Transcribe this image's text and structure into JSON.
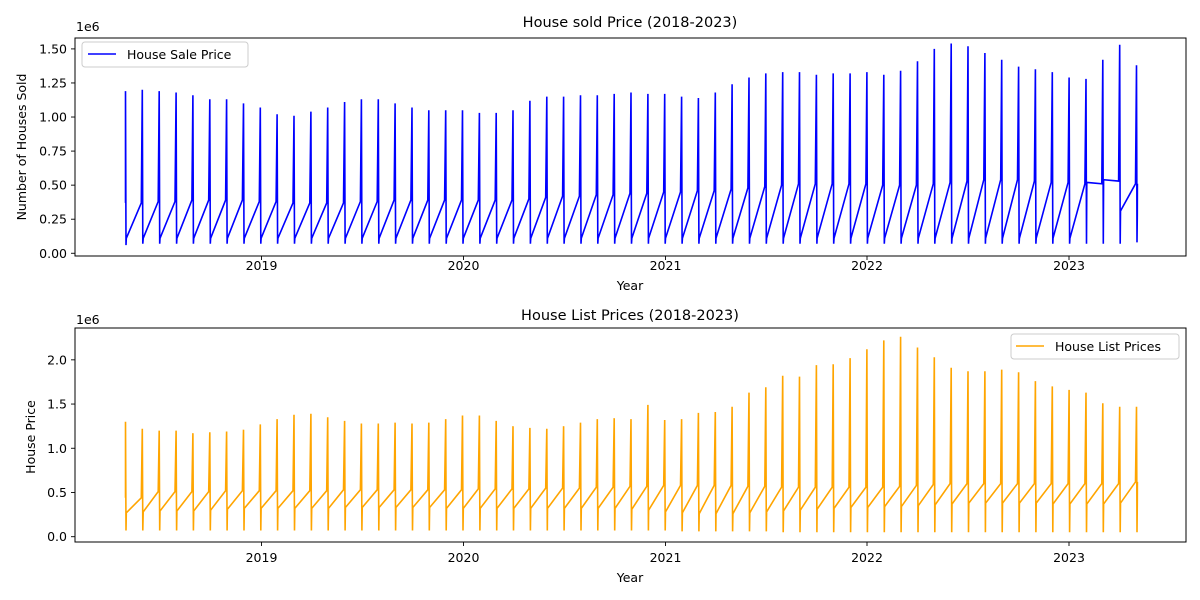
{
  "chart_data": [
    {
      "type": "line",
      "title": "House sold Price (2018-2023)",
      "xlabel": "Year",
      "ylabel": "Number of Houses Sold",
      "offset_label": "1e6",
      "x_ticks": [
        "2019",
        "2020",
        "2021",
        "2022",
        "2023"
      ],
      "y_ticks": [
        "0.00",
        "0.25",
        "0.50",
        "0.75",
        "1.00",
        "1.25",
        "1.50"
      ],
      "ylim": [
        -0.02,
        1.58
      ],
      "grid": false,
      "legend": "upper left",
      "series": [
        {
          "name": "House Sale Price",
          "color": "#0000ff",
          "monthly_peak": [
            1.19,
            1.2,
            1.19,
            1.18,
            1.16,
            1.13,
            1.13,
            1.1,
            1.07,
            1.02,
            1.01,
            1.04,
            1.07,
            1.11,
            1.13,
            1.13,
            1.1,
            1.07,
            1.05,
            1.05,
            1.05,
            1.03,
            1.03,
            1.05,
            1.12,
            1.15,
            1.15,
            1.16,
            1.16,
            1.17,
            1.18,
            1.17,
            1.17,
            1.15,
            1.14,
            1.18,
            1.24,
            1.29,
            1.32,
            1.33,
            1.33,
            1.31,
            1.32,
            1.32,
            1.33,
            1.31,
            1.34,
            1.41,
            1.5,
            1.54,
            1.52,
            1.47,
            1.42,
            1.37,
            1.35,
            1.33,
            1.29,
            1.28,
            1.42,
            1.53,
            1.38
          ],
          "monthly_min": [
            0.06,
            0.07,
            0.07,
            0.07,
            0.07,
            0.07,
            0.07,
            0.07,
            0.07,
            0.07,
            0.07,
            0.07,
            0.07,
            0.07,
            0.07,
            0.07,
            0.07,
            0.07,
            0.07,
            0.07,
            0.07,
            0.07,
            0.07,
            0.07,
            0.07,
            0.07,
            0.07,
            0.07,
            0.07,
            0.07,
            0.07,
            0.07,
            0.07,
            0.07,
            0.07,
            0.07,
            0.07,
            0.07,
            0.07,
            0.07,
            0.07,
            0.07,
            0.07,
            0.07,
            0.07,
            0.07,
            0.07,
            0.07,
            0.07,
            0.07,
            0.07,
            0.07,
            0.07,
            0.07,
            0.07,
            0.07,
            0.07,
            0.07,
            0.07,
            0.07,
            0.08
          ],
          "monthly_low": [
            0.11,
            0.11,
            0.11,
            0.11,
            0.11,
            0.11,
            0.11,
            0.11,
            0.11,
            0.11,
            0.11,
            0.11,
            0.11,
            0.11,
            0.11,
            0.11,
            0.11,
            0.11,
            0.11,
            0.11,
            0.11,
            0.11,
            0.11,
            0.11,
            0.11,
            0.11,
            0.11,
            0.11,
            0.11,
            0.11,
            0.11,
            0.11,
            0.11,
            0.11,
            0.11,
            0.11,
            0.11,
            0.11,
            0.11,
            0.11,
            0.11,
            0.11,
            0.11,
            0.11,
            0.11,
            0.11,
            0.11,
            0.11,
            0.11,
            0.11,
            0.11,
            0.11,
            0.11,
            0.11,
            0.11,
            0.11,
            0.11,
            0.52,
            0.54,
            0.31,
            0.28
          ],
          "monthly_high": [
            0.37,
            0.38,
            0.38,
            0.39,
            0.39,
            0.39,
            0.39,
            0.38,
            0.38,
            0.37,
            0.37,
            0.37,
            0.37,
            0.38,
            0.38,
            0.39,
            0.39,
            0.39,
            0.39,
            0.39,
            0.39,
            0.39,
            0.39,
            0.4,
            0.41,
            0.42,
            0.42,
            0.43,
            0.43,
            0.44,
            0.44,
            0.45,
            0.45,
            0.46,
            0.46,
            0.47,
            0.48,
            0.49,
            0.5,
            0.51,
            0.51,
            0.51,
            0.51,
            0.51,
            0.5,
            0.5,
            0.5,
            0.51,
            0.52,
            0.53,
            0.54,
            0.54,
            0.54,
            0.53,
            0.52,
            0.52,
            0.51,
            0.51,
            0.53,
            0.51,
            0.51
          ]
        }
      ]
    },
    {
      "type": "line",
      "title": "House List Prices (2018-2023)",
      "xlabel": "Year",
      "ylabel": "House Price",
      "offset_label": "1e6",
      "x_ticks": [
        "2019",
        "2020",
        "2021",
        "2022",
        "2023"
      ],
      "y_ticks": [
        "0.0",
        "0.5",
        "1.0",
        "1.5",
        "2.0"
      ],
      "ylim": [
        -0.06,
        2.36
      ],
      "grid": false,
      "legend": "upper right",
      "series": [
        {
          "name": "House List Prices",
          "color": "#ffa500",
          "monthly_peak": [
            1.3,
            1.22,
            1.2,
            1.2,
            1.17,
            1.18,
            1.19,
            1.21,
            1.27,
            1.33,
            1.38,
            1.39,
            1.35,
            1.31,
            1.28,
            1.28,
            1.29,
            1.28,
            1.29,
            1.33,
            1.37,
            1.37,
            1.31,
            1.25,
            1.23,
            1.22,
            1.25,
            1.29,
            1.33,
            1.34,
            1.33,
            1.49,
            1.32,
            1.33,
            1.4,
            1.41,
            1.47,
            1.63,
            1.69,
            1.82,
            1.81,
            1.94,
            1.95,
            2.02,
            2.12,
            2.22,
            2.26,
            2.14,
            2.03,
            1.91,
            1.87,
            1.87,
            1.89,
            1.86,
            1.76,
            1.7,
            1.66,
            1.63,
            1.51,
            1.47,
            1.47
          ],
          "monthly_min": [
            0.07,
            0.07,
            0.07,
            0.07,
            0.07,
            0.07,
            0.07,
            0.07,
            0.07,
            0.07,
            0.07,
            0.07,
            0.07,
            0.07,
            0.07,
            0.07,
            0.07,
            0.07,
            0.07,
            0.07,
            0.07,
            0.07,
            0.07,
            0.07,
            0.07,
            0.07,
            0.07,
            0.07,
            0.07,
            0.07,
            0.07,
            0.07,
            0.07,
            0.06,
            0.06,
            0.06,
            0.06,
            0.06,
            0.06,
            0.05,
            0.05,
            0.05,
            0.05,
            0.05,
            0.05,
            0.05,
            0.05,
            0.05,
            0.05,
            0.05,
            0.05,
            0.05,
            0.05,
            0.05,
            0.05,
            0.05,
            0.05,
            0.05,
            0.05,
            0.05,
            0.05
          ],
          "monthly_low": [
            0.27,
            0.28,
            0.29,
            0.29,
            0.29,
            0.3,
            0.31,
            0.32,
            0.32,
            0.32,
            0.32,
            0.32,
            0.32,
            0.33,
            0.33,
            0.33,
            0.33,
            0.33,
            0.33,
            0.32,
            0.32,
            0.32,
            0.32,
            0.32,
            0.32,
            0.32,
            0.32,
            0.32,
            0.32,
            0.32,
            0.31,
            0.3,
            0.28,
            0.27,
            0.26,
            0.26,
            0.26,
            0.27,
            0.28,
            0.29,
            0.3,
            0.31,
            0.32,
            0.33,
            0.33,
            0.34,
            0.34,
            0.35,
            0.36,
            0.37,
            0.38,
            0.38,
            0.38,
            0.38,
            0.38,
            0.37,
            0.37,
            0.37,
            0.37,
            0.38,
            0.38
          ],
          "monthly_high": [
            0.44,
            0.51,
            0.51,
            0.51,
            0.51,
            0.52,
            0.52,
            0.52,
            0.52,
            0.52,
            0.52,
            0.52,
            0.53,
            0.53,
            0.53,
            0.53,
            0.53,
            0.53,
            0.53,
            0.53,
            0.54,
            0.54,
            0.54,
            0.54,
            0.55,
            0.55,
            0.55,
            0.56,
            0.56,
            0.57,
            0.57,
            0.58,
            0.58,
            0.58,
            0.58,
            0.58,
            0.57,
            0.57,
            0.56,
            0.56,
            0.56,
            0.56,
            0.56,
            0.56,
            0.56,
            0.57,
            0.58,
            0.59,
            0.6,
            0.6,
            0.6,
            0.6,
            0.6,
            0.6,
            0.6,
            0.6,
            0.6,
            0.6,
            0.6,
            0.62,
            0.62
          ]
        }
      ]
    }
  ]
}
